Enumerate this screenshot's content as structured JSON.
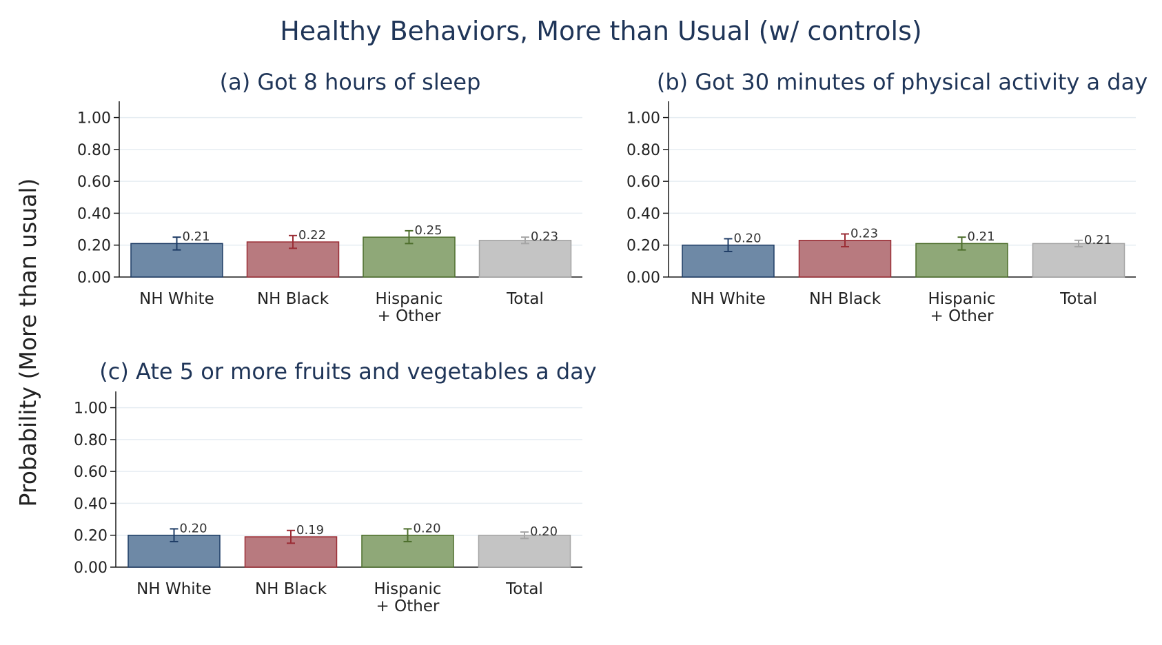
{
  "figure": {
    "title": "Healthy Behaviors, More than Usual (w/ controls)",
    "ylabel": "Probability (More than usual)"
  },
  "colors": {
    "NH White": {
      "fill": "#6e89a6",
      "stroke": "#1f3d66"
    },
    "NH Black": {
      "fill": "#b87a7f",
      "stroke": "#9b2d35"
    },
    "Hispanic + Other": {
      "fill": "#8fa878",
      "stroke": "#4d6e2c"
    },
    "Total": {
      "fill": "#c4c4c4",
      "stroke": "#a5a5a5"
    },
    "grid": "#e6edf2",
    "axis": "#1a1a1a"
  },
  "chart_data": [
    {
      "type": "bar",
      "title": "(a) Got 8 hours of sleep",
      "categories": [
        "NH White",
        "NH Black",
        "Hispanic + Other",
        "Total"
      ],
      "category_labels": [
        [
          "NH White"
        ],
        [
          "NH Black"
        ],
        [
          "Hispanic",
          "+ Other"
        ],
        [
          "Total"
        ]
      ],
      "values": [
        0.21,
        0.22,
        0.25,
        0.23
      ],
      "value_labels": [
        "0.21",
        "0.22",
        "0.25",
        "0.23"
      ],
      "ci_low": [
        0.17,
        0.18,
        0.21,
        0.21
      ],
      "ci_high": [
        0.25,
        0.26,
        0.29,
        0.25
      ],
      "ylim": [
        0,
        1.05
      ],
      "yticks": [
        0,
        0.2,
        0.4,
        0.6,
        0.8,
        1.0
      ],
      "ytick_labels": [
        "0.00",
        "0.20",
        "0.40",
        "0.60",
        "0.80",
        "1.00"
      ],
      "grid": true
    },
    {
      "type": "bar",
      "title": "(b) Got 30 minutes of physical activity a day",
      "categories": [
        "NH White",
        "NH Black",
        "Hispanic + Other",
        "Total"
      ],
      "category_labels": [
        [
          "NH White"
        ],
        [
          "NH Black"
        ],
        [
          "Hispanic",
          "+ Other"
        ],
        [
          "Total"
        ]
      ],
      "values": [
        0.2,
        0.23,
        0.21,
        0.21
      ],
      "value_labels": [
        "0.20",
        "0.23",
        "0.21",
        "0.21"
      ],
      "ci_low": [
        0.16,
        0.19,
        0.17,
        0.19
      ],
      "ci_high": [
        0.24,
        0.27,
        0.25,
        0.23
      ],
      "ylim": [
        0,
        1.05
      ],
      "yticks": [
        0,
        0.2,
        0.4,
        0.6,
        0.8,
        1.0
      ],
      "ytick_labels": [
        "0.00",
        "0.20",
        "0.40",
        "0.60",
        "0.80",
        "1.00"
      ],
      "grid": true
    },
    {
      "type": "bar",
      "title": "(c) Ate 5 or more fruits and vegetables a day",
      "categories": [
        "NH White",
        "NH Black",
        "Hispanic + Other",
        "Total"
      ],
      "category_labels": [
        [
          "NH White"
        ],
        [
          "NH Black"
        ],
        [
          "Hispanic",
          "+ Other"
        ],
        [
          "Total"
        ]
      ],
      "values": [
        0.2,
        0.19,
        0.2,
        0.2
      ],
      "value_labels": [
        "0.20",
        "0.19",
        "0.20",
        "0.20"
      ],
      "ci_low": [
        0.16,
        0.15,
        0.16,
        0.18
      ],
      "ci_high": [
        0.24,
        0.23,
        0.24,
        0.22
      ],
      "ylim": [
        0,
        1.05
      ],
      "yticks": [
        0,
        0.2,
        0.4,
        0.6,
        0.8,
        1.0
      ],
      "ytick_labels": [
        "0.00",
        "0.20",
        "0.40",
        "0.60",
        "0.80",
        "1.00"
      ],
      "grid": true
    }
  ]
}
